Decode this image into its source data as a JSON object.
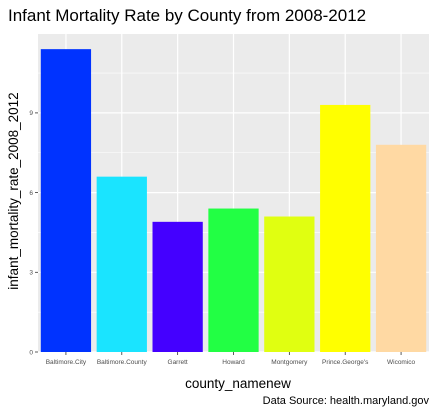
{
  "chart_data": {
    "type": "bar",
    "title": "Infant Mortality Rate by County from 2008-2012",
    "xlabel": "county_namenew",
    "ylabel": "infant_mortality_rate_2008_2012",
    "caption": "Data Source: health.maryland.gov",
    "categories": [
      "Baltimore.City",
      "Baltimore.County",
      "Garrett",
      "Howard",
      "Montgomery",
      "Prince.George's",
      "Wicomico"
    ],
    "values": [
      11.4,
      6.6,
      4.9,
      5.4,
      5.1,
      9.3,
      7.8
    ],
    "colors": [
      "#0033ff",
      "#1ae4ff",
      "#4400ff",
      "#22ff44",
      "#e0ff11",
      "#ffff00",
      "#ffd9a3"
    ],
    "yticks": [
      0,
      3,
      6,
      9
    ],
    "ylim": [
      0,
      11.97
    ],
    "grid": true,
    "panel_background": "#ebebeb",
    "legend": "none"
  }
}
